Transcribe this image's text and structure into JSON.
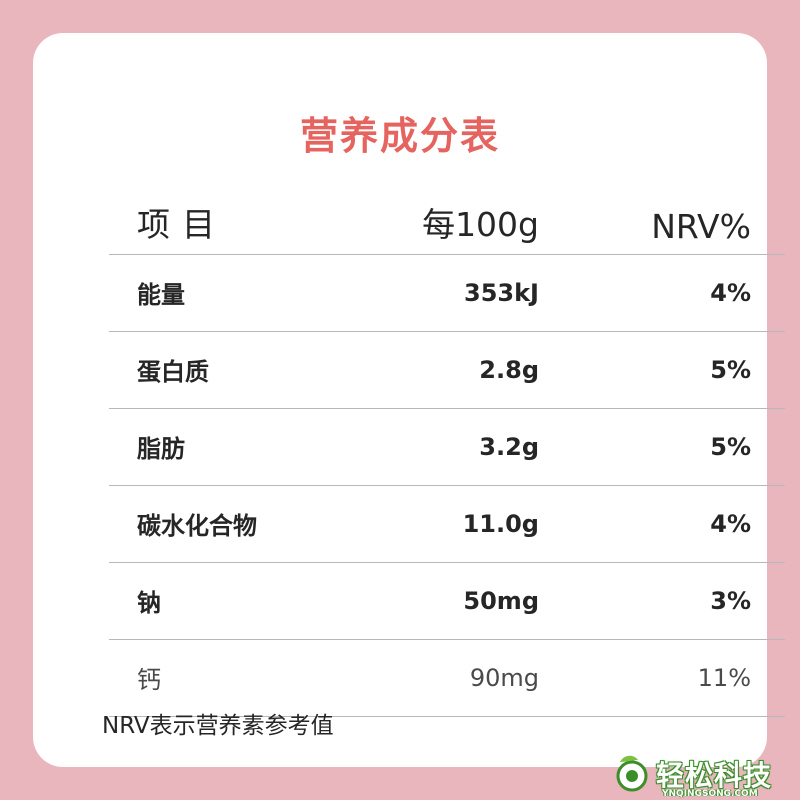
{
  "colors": {
    "background": "#e8b6bc",
    "card": "#ffffff",
    "title": "#e6645f",
    "text": "#262626",
    "divider": "#b8b8b8",
    "watermark": "#3a8f2a"
  },
  "title": "营养成分表",
  "header": {
    "item": "项目",
    "per100g": "每100g",
    "nrv": "NRV%"
  },
  "rows": [
    {
      "name": "能量",
      "amount": "353kJ",
      "nrv": "4%"
    },
    {
      "name": "蛋白质",
      "amount": "2.8g",
      "nrv": "5%"
    },
    {
      "name": "脂肪",
      "amount": "3.2g",
      "nrv": "5%"
    },
    {
      "name": "碳水化合物",
      "amount": "11.0g",
      "nrv": "4%"
    },
    {
      "name": "钠",
      "amount": "50mg",
      "nrv": "3%"
    },
    {
      "name": "钙",
      "amount": "90mg",
      "nrv": "11%"
    }
  ],
  "footnote": "NRV表示营养素参考值",
  "watermark": {
    "text": "轻松科技",
    "subtext": "YNQINGSONG.COM",
    "icon": "leaf-logo-icon"
  }
}
